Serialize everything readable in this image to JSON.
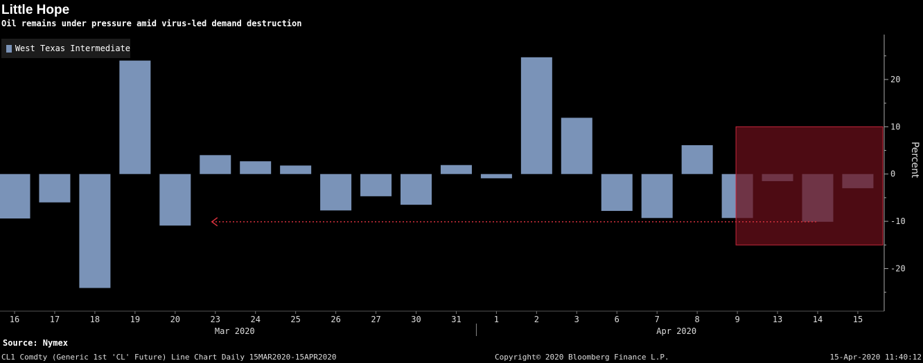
{
  "header": {
    "title": "Little Hope",
    "subtitle": "Oil remains under pressure amid virus-led demand destruction"
  },
  "footer": {
    "source": "Source: Nymex",
    "left": "CL1 Comdty (Generic 1st 'CL' Future) Line Chart  Daily 15MAR2020-15APR2020",
    "center": "Copyright© 2020 Bloomberg Finance L.P.",
    "right": "15-Apr-2020 11:40:12"
  },
  "colors": {
    "bar": "#7a93b8",
    "highlight_box": "#6b0f1a",
    "highlight_border": "#c8283c",
    "arrow": "#d4303c"
  },
  "chart_data": {
    "type": "bar",
    "title": "Little Hope",
    "subtitle": "Oil remains under pressure amid virus-led demand destruction",
    "ylabel": "Percent",
    "ylim": [
      -29,
      29.5
    ],
    "yticks": [
      -20,
      -10,
      0,
      10,
      20
    ],
    "y_axis_side": "right",
    "legend_position": "top-left",
    "grid": false,
    "categories": [
      "16",
      "17",
      "18",
      "19",
      "20",
      "23",
      "24",
      "25",
      "26",
      "27",
      "30",
      "31",
      "1",
      "2",
      "3",
      "6",
      "7",
      "8",
      "9",
      "13",
      "14",
      "15"
    ],
    "month_labels": [
      {
        "label": "Mar 2020",
        "under_category": "23"
      },
      {
        "label": "Apr 2020",
        "under_category": "7"
      }
    ],
    "series": [
      {
        "name": "West Texas Intermediate",
        "values": [
          -9.4,
          -6.0,
          -24.1,
          24.0,
          -10.9,
          4.0,
          2.7,
          1.8,
          -7.7,
          -4.7,
          -6.5,
          1.9,
          -0.9,
          24.7,
          11.9,
          -7.8,
          -9.3,
          6.1,
          -9.3,
          -1.5,
          -10.1,
          -3.0
        ]
      }
    ],
    "annotations": [
      {
        "type": "highlight-box",
        "x_from": "9",
        "x_to": "y-axis",
        "y_from": -15,
        "y_to": 10
      },
      {
        "type": "dotted-arrow",
        "from_x": "14",
        "to_x": "23",
        "y": -10.1
      }
    ]
  }
}
